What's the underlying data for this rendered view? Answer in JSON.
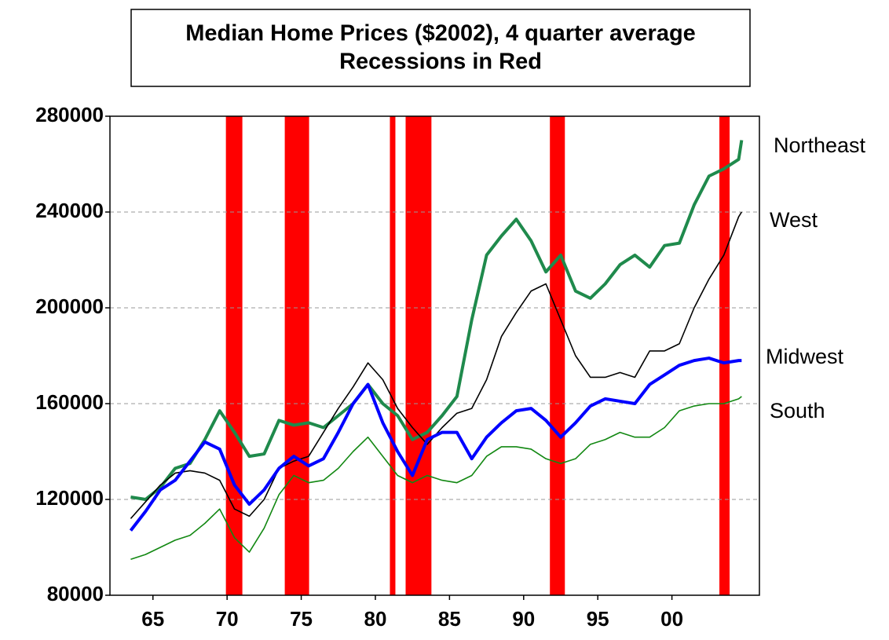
{
  "chart_data": {
    "type": "line",
    "title": "Median Home Prices ($2002), 4 quarter average",
    "subtitle": "Recessions in Red",
    "x": [
      1963.5,
      1964.5,
      1965.5,
      1966.5,
      1967.5,
      1968.5,
      1969.5,
      1970.5,
      1971.5,
      1972.5,
      1973.5,
      1974.5,
      1975.5,
      1976.5,
      1977.5,
      1978.5,
      1979.5,
      1980.5,
      1981.5,
      1982.5,
      1983.5,
      1984.5,
      1985.5,
      1986.5,
      1987.5,
      1988.5,
      1989.5,
      1990.5,
      1991.5,
      1992.5,
      1993.5,
      1994.5,
      1995.5,
      1996.5,
      1997.5,
      1998.5,
      1999.5,
      2000.5,
      2001.5,
      2002.5,
      2003.5,
      2004.5,
      2004.7
    ],
    "series": [
      {
        "name": "Northeast",
        "color": "#1f8a4c",
        "width": 4,
        "values": [
          121000,
          120000,
          125000,
          133000,
          135000,
          145000,
          157000,
          148000,
          138000,
          139000,
          153000,
          151000,
          152000,
          150000,
          155000,
          160000,
          168000,
          160000,
          155000,
          145000,
          148000,
          155000,
          163000,
          195000,
          222000,
          230000,
          237000,
          228000,
          215000,
          222000,
          207000,
          204000,
          210000,
          218000,
          222000,
          217000,
          226000,
          227000,
          243000,
          255000,
          258000,
          262000,
          270000
        ]
      },
      {
        "name": "West",
        "color": "#000000",
        "width": 1.6,
        "values": [
          112000,
          119000,
          126000,
          131000,
          132000,
          131000,
          128000,
          116000,
          113000,
          120000,
          133000,
          136000,
          138000,
          148000,
          158000,
          167000,
          177000,
          170000,
          158000,
          150000,
          143000,
          150000,
          156000,
          158000,
          170000,
          188000,
          198000,
          207000,
          210000,
          195000,
          180000,
          171000,
          171000,
          173000,
          171000,
          182000,
          182000,
          185000,
          200000,
          212000,
          222000,
          238000,
          240000
        ]
      },
      {
        "name": "Midwest",
        "color": "#0000ff",
        "width": 4,
        "values": [
          107000,
          115000,
          124000,
          128000,
          136000,
          144000,
          141000,
          126000,
          118000,
          124000,
          133000,
          138000,
          134000,
          137000,
          148000,
          160000,
          168000,
          152000,
          140000,
          130000,
          145000,
          148000,
          148000,
          137000,
          146000,
          152000,
          157000,
          158000,
          153000,
          146000,
          152000,
          159000,
          162000,
          161000,
          160000,
          168000,
          172000,
          176000,
          178000,
          179000,
          177000,
          178000,
          178000
        ]
      },
      {
        "name": "South",
        "color": "#128812",
        "width": 1.6,
        "values": [
          95000,
          97000,
          100000,
          103000,
          105000,
          110000,
          116000,
          104000,
          98000,
          108000,
          122000,
          130000,
          127000,
          128000,
          133000,
          140000,
          146000,
          138000,
          130000,
          127000,
          130000,
          128000,
          127000,
          130000,
          138000,
          142000,
          142000,
          141000,
          137000,
          135000,
          137000,
          143000,
          145000,
          148000,
          146000,
          146000,
          150000,
          157000,
          159000,
          160000,
          160000,
          162000,
          163000
        ]
      }
    ],
    "recessions": [
      [
        1969.92,
        1971.03
      ],
      [
        1973.89,
        1975.53
      ],
      [
        1980.98,
        1981.35
      ],
      [
        1982.04,
        1983.78
      ],
      [
        1991.77,
        1992.78
      ],
      [
        2003.2,
        2003.89
      ]
    ],
    "recession_color": "#ff0000",
    "xlim": [
      1962.1,
      2005.9
    ],
    "xticks": [
      {
        "value": 1965,
        "label": "65"
      },
      {
        "value": 1970,
        "label": "70"
      },
      {
        "value": 1975,
        "label": "75"
      },
      {
        "value": 1980,
        "label": "80"
      },
      {
        "value": 1985,
        "label": "85"
      },
      {
        "value": 1990,
        "label": "90"
      },
      {
        "value": 1995,
        "label": "95"
      },
      {
        "value": 2000,
        "label": "00"
      }
    ],
    "ylim": [
      80000,
      280000
    ],
    "yticks": [
      80000,
      120000,
      160000,
      200000,
      240000,
      280000
    ],
    "grid": true
  }
}
